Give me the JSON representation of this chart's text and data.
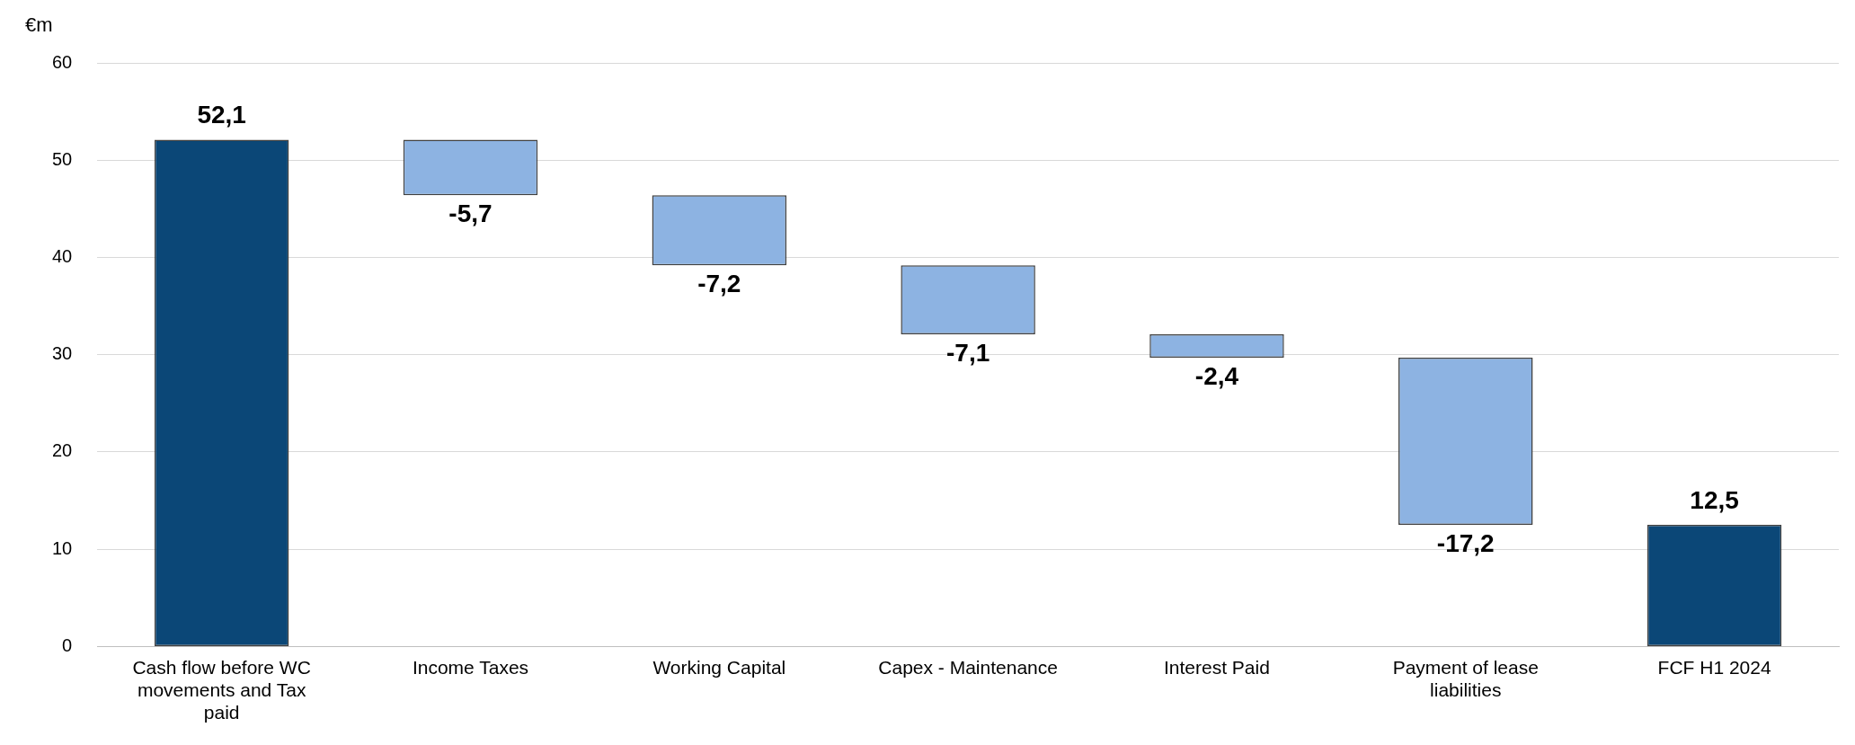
{
  "chart_data": {
    "type": "bar",
    "ylabel": "€m",
    "categories": [
      "Cash flow before WC movements and Tax paid",
      "Income Taxes",
      "Working Capital",
      "Capex - Maintenance",
      "Interest Paid",
      "Payment of lease liabilities",
      "FCF H1 2024"
    ],
    "values": [
      52.1,
      -5.7,
      -7.2,
      -7.1,
      -2.4,
      -17.2,
      12.5
    ],
    "base": [
      0,
      52.1,
      46.4,
      39.2,
      32.1,
      29.7,
      0
    ],
    "colors": [
      "#0b4777",
      "#8db3e2",
      "#8db3e2",
      "#8db3e2",
      "#8db3e2",
      "#8db3e2",
      "#0b4777"
    ],
    "value_labels": [
      "52,1",
      "-5,7",
      "-7,2",
      "-7,1",
      "-2,4",
      "-17,2",
      "12,5"
    ],
    "ylim": [
      0,
      60
    ],
    "yticks": [
      0,
      10,
      20,
      30,
      40,
      50,
      60
    ],
    "grid": "y",
    "legend": false
  }
}
